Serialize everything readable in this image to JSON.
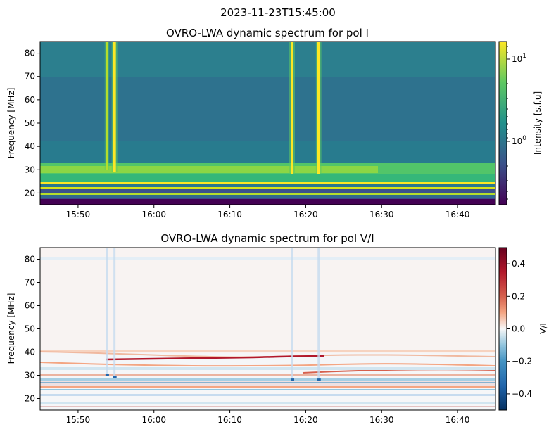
{
  "suptitle": "2023-11-23T15:45:00",
  "chart_data": [
    {
      "type": "heatmap",
      "title": "OVRO-LWA dynamic spectrum for pol I",
      "xlabel": "",
      "ylabel": "Frequency [MHz]",
      "x_tick_labels": [
        "15:50",
        "16:00",
        "16:10",
        "16:20",
        "16:30",
        "16:40"
      ],
      "x_range": [
        "15:45",
        "16:45"
      ],
      "y_ticks": [
        20,
        30,
        40,
        50,
        60,
        70,
        80
      ],
      "y_tick_labels": [
        "20",
        "30",
        "40",
        "50",
        "60",
        "70",
        "80"
      ],
      "ylim": [
        15,
        85
      ],
      "colorbar": {
        "label": "Intensity [s.f.u]",
        "scale": "log",
        "range": [
          0.2,
          17
        ],
        "tick_labels": [
          "10^1",
          "10^0"
        ],
        "colormap": "viridis"
      },
      "bursts": [
        {
          "time": "15:53.8",
          "freq_low_mhz": 30,
          "strength": 0.6
        },
        {
          "time": "15:54.8",
          "freq_low_mhz": 29,
          "strength": 1.0
        },
        {
          "time": "16:18.2",
          "freq_low_mhz": 28,
          "strength": 1.0
        },
        {
          "time": "16:21.7",
          "freq_low_mhz": 28,
          "strength": 0.95
        }
      ]
    },
    {
      "type": "heatmap",
      "title": "OVRO-LWA dynamic spectrum for pol V/I",
      "xlabel": "",
      "ylabel": "Frequency [MHz]",
      "x_tick_labels": [
        "15:50",
        "16:00",
        "16:10",
        "16:20",
        "16:30",
        "16:40"
      ],
      "x_range": [
        "15:45",
        "16:45"
      ],
      "y_ticks": [
        20,
        30,
        40,
        50,
        60,
        70,
        80
      ],
      "y_tick_labels": [
        "20",
        "30",
        "40",
        "50",
        "60",
        "70",
        "80"
      ],
      "ylim": [
        15,
        85
      ],
      "colorbar": {
        "label": "V/I",
        "scale": "linear",
        "range": [
          -0.5,
          0.5
        ],
        "ticks": [
          0.4,
          0.2,
          0.0,
          -0.2,
          -0.4
        ],
        "tick_labels": [
          "0.4",
          "0.2",
          "0.0",
          "−0.2",
          "−0.4"
        ],
        "colormap": "RdBu_r"
      }
    }
  ]
}
